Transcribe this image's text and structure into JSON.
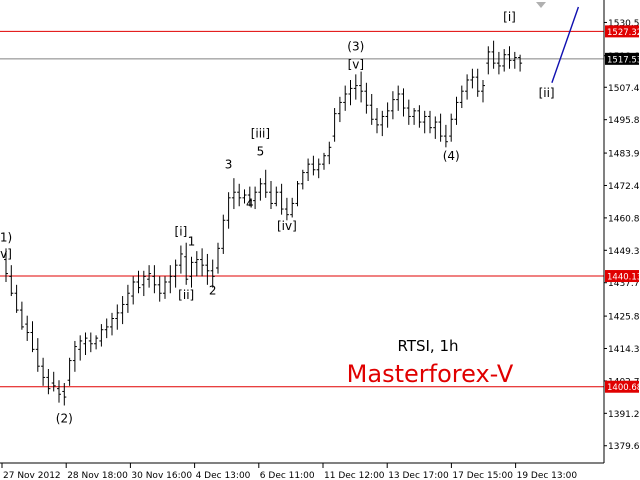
{
  "chart_data": {
    "type": "ohlc",
    "title": "RTSI, 1h",
    "watermark": "Masterforex-V",
    "watermark_color": "#e00000",
    "background": "#ffffff",
    "bar_color": "#000000",
    "grid": false,
    "y_range": [
      1373.5,
      1538.5
    ],
    "y_ticks": [
      {
        "value": 1530.5,
        "label": "1530.50"
      },
      {
        "value": 1518.65,
        "label": "1518.65"
      },
      {
        "value": 1507.4,
        "label": "1507.40"
      },
      {
        "value": 1495.85,
        "label": "1495.85"
      },
      {
        "value": 1483.95,
        "label": "1483.95"
      },
      {
        "value": 1472.4,
        "label": "1472.40"
      },
      {
        "value": 1460.85,
        "label": "1460.85"
      },
      {
        "value": 1449.3,
        "label": "1449.30"
      },
      {
        "value": 1437.75,
        "label": "1437.75"
      },
      {
        "value": 1425.85,
        "label": "1425.85"
      },
      {
        "value": 1414.3,
        "label": "1414.30"
      },
      {
        "value": 1402.75,
        "label": "1402.75"
      },
      {
        "value": 1391.2,
        "label": "1391.20"
      },
      {
        "value": 1379.65,
        "label": "1379.65"
      }
    ],
    "x_ticks": [
      "27 Nov 2012",
      "28 Nov 18:00",
      "30 Nov 16:00",
      "4 Dec 13:00",
      "6 Dec 11:00",
      "11 Dec 12:00",
      "13 Dec 17:00",
      "17 Dec 15:00",
      "19 Dec 13:00"
    ],
    "horizontal_lines": [
      {
        "value": 1527.32,
        "label": "1527.32",
        "color": "#e00000"
      },
      {
        "value": 1517.53,
        "label": "1517.53",
        "color": "#808080"
      },
      {
        "value": 1440.13,
        "label": "1440.13",
        "color": "#e00000"
      },
      {
        "value": 1400.68,
        "label": "1400.68",
        "color": "#e00000"
      }
    ],
    "ohlc": [
      [
        1446,
        1450,
        1438,
        1441
      ],
      [
        1440,
        1444,
        1433,
        1434
      ],
      [
        1434,
        1437,
        1427,
        1428
      ],
      [
        1428,
        1431,
        1421,
        1422
      ],
      [
        1423,
        1426,
        1417,
        1420
      ],
      [
        1420,
        1424,
        1413,
        1414
      ],
      [
        1414,
        1418,
        1406,
        1408
      ],
      [
        1408,
        1411,
        1401,
        1404
      ],
      [
        1404,
        1407,
        1398,
        1400
      ],
      [
        1402,
        1406,
        1399,
        1401
      ],
      [
        1400,
        1403,
        1395,
        1398
      ],
      [
        1399,
        1402,
        1394,
        1397
      ],
      [
        1403,
        1411,
        1401,
        1410
      ],
      [
        1410,
        1417,
        1406,
        1415
      ],
      [
        1414,
        1419,
        1410,
        1417
      ],
      [
        1416,
        1420,
        1412,
        1418
      ],
      [
        1417,
        1420,
        1413,
        1416
      ],
      [
        1416,
        1419,
        1414,
        1418
      ],
      [
        1417,
        1423,
        1415,
        1421
      ],
      [
        1421,
        1425,
        1418,
        1422
      ],
      [
        1422,
        1427,
        1419,
        1425
      ],
      [
        1425,
        1430,
        1421,
        1427
      ],
      [
        1427,
        1433,
        1423,
        1430
      ],
      [
        1430,
        1437,
        1427,
        1434
      ],
      [
        1433,
        1440,
        1430,
        1438
      ],
      [
        1438,
        1442,
        1434,
        1436
      ],
      [
        1437,
        1442,
        1433,
        1440
      ],
      [
        1439,
        1444,
        1436,
        1441
      ],
      [
        1440,
        1444,
        1434,
        1437
      ],
      [
        1437,
        1440,
        1431,
        1434
      ],
      [
        1434,
        1440,
        1432,
        1438
      ],
      [
        1438,
        1444,
        1434,
        1440
      ],
      [
        1440,
        1446,
        1436,
        1444
      ],
      [
        1444,
        1451,
        1441,
        1448
      ],
      [
        1447,
        1452,
        1437,
        1439
      ],
      [
        1440,
        1447,
        1436,
        1445
      ],
      [
        1445,
        1449,
        1440,
        1446
      ],
      [
        1446,
        1450,
        1440,
        1444
      ],
      [
        1444,
        1448,
        1437,
        1442
      ],
      [
        1442,
        1446,
        1436,
        1440
      ],
      [
        1443,
        1452,
        1441,
        1450
      ],
      [
        1450,
        1462,
        1448,
        1460
      ],
      [
        1460,
        1470,
        1457,
        1468
      ],
      [
        1468,
        1475,
        1464,
        1470
      ],
      [
        1470,
        1473,
        1465,
        1468
      ],
      [
        1468,
        1471,
        1466,
        1469
      ],
      [
        1469,
        1472,
        1465,
        1467
      ],
      [
        1467,
        1472,
        1464,
        1470
      ],
      [
        1470,
        1475,
        1467,
        1473
      ],
      [
        1473,
        1478,
        1468,
        1470
      ],
      [
        1470,
        1474,
        1464,
        1466
      ],
      [
        1466,
        1472,
        1465,
        1470
      ],
      [
        1470,
        1473,
        1462,
        1464
      ],
      [
        1464,
        1468,
        1460,
        1462
      ],
      [
        1462,
        1468,
        1461,
        1466
      ],
      [
        1466,
        1474,
        1465,
        1473
      ],
      [
        1473,
        1478,
        1471,
        1477
      ],
      [
        1477,
        1482,
        1474,
        1480
      ],
      [
        1480,
        1483,
        1476,
        1478
      ],
      [
        1478,
        1482,
        1475,
        1480
      ],
      [
        1480,
        1484,
        1478,
        1483
      ],
      [
        1483,
        1488,
        1480,
        1486
      ],
      [
        1490,
        1500,
        1488,
        1498
      ],
      [
        1498,
        1504,
        1495,
        1502
      ],
      [
        1502,
        1508,
        1499,
        1505
      ],
      [
        1505,
        1510,
        1501,
        1507
      ],
      [
        1507,
        1512,
        1503,
        1508
      ],
      [
        1508,
        1513,
        1502,
        1506
      ],
      [
        1506,
        1509,
        1498,
        1501
      ],
      [
        1501,
        1505,
        1494,
        1496
      ],
      [
        1496,
        1500,
        1491,
        1494
      ],
      [
        1494,
        1499,
        1490,
        1497
      ],
      [
        1497,
        1502,
        1493,
        1499
      ],
      [
        1499,
        1506,
        1496,
        1503
      ],
      [
        1503,
        1508,
        1499,
        1505
      ],
      [
        1505,
        1507,
        1497,
        1500
      ],
      [
        1500,
        1503,
        1494,
        1497
      ],
      [
        1497,
        1500,
        1494,
        1499
      ],
      [
        1499,
        1501,
        1493,
        1495
      ],
      [
        1495,
        1499,
        1491,
        1497
      ],
      [
        1497,
        1499,
        1491,
        1493
      ],
      [
        1493,
        1497,
        1489,
        1495
      ],
      [
        1495,
        1498,
        1488,
        1490
      ],
      [
        1490,
        1494,
        1486,
        1488
      ],
      [
        1490,
        1498,
        1488,
        1496
      ],
      [
        1496,
        1504,
        1494,
        1502
      ],
      [
        1502,
        1508,
        1500,
        1506
      ],
      [
        1506,
        1512,
        1503,
        1510
      ],
      [
        1510,
        1514,
        1507,
        1511
      ],
      [
        1511,
        1514,
        1504,
        1506
      ],
      [
        1506,
        1510,
        1502,
        1508
      ],
      [
        1516,
        1522,
        1512,
        1520
      ],
      [
        1520,
        1524,
        1514,
        1516
      ],
      [
        1516,
        1520,
        1512,
        1515
      ],
      [
        1515,
        1521,
        1513,
        1519
      ],
      [
        1519,
        1522,
        1514,
        1517
      ],
      [
        1517,
        1520,
        1514,
        1518
      ],
      [
        1518,
        1519,
        1513,
        1516
      ]
    ],
    "forecast_line": [
      {
        "bar": 103,
        "price": 1509
      },
      {
        "bar": 108,
        "price": 1536
      }
    ],
    "wave_labels": [
      {
        "text": "1)",
        "bar": 0,
        "price": 1452.5
      },
      {
        "text": "v]",
        "bar": 0,
        "price": 1446.5
      },
      {
        "text": "(2)",
        "bar": 11,
        "price": 1388
      },
      {
        "text": "[i]",
        "bar": 33,
        "price": 1454.5
      },
      {
        "text": "1",
        "bar": 35,
        "price": 1451
      },
      {
        "text": "[ii]",
        "bar": 34,
        "price": 1432
      },
      {
        "text": "2",
        "bar": 39,
        "price": 1433.5
      },
      {
        "text": "3",
        "bar": 42,
        "price": 1478.5
      },
      {
        "text": "[iii]",
        "bar": 48,
        "price": 1489.5
      },
      {
        "text": "5",
        "bar": 48,
        "price": 1483
      },
      {
        "text": "4",
        "bar": 46,
        "price": 1464.5
      },
      {
        "text": "[iv]",
        "bar": 53,
        "price": 1456.5
      },
      {
        "text": "(3)",
        "bar": 66,
        "price": 1520.5
      },
      {
        "text": "[v]",
        "bar": 66,
        "price": 1514
      },
      {
        "text": "(4)",
        "bar": 84,
        "price": 1481.5
      },
      {
        "text": "[i]",
        "bar": 95,
        "price": 1531
      },
      {
        "text": "[ii]",
        "bar": 102,
        "price": 1504
      }
    ]
  }
}
